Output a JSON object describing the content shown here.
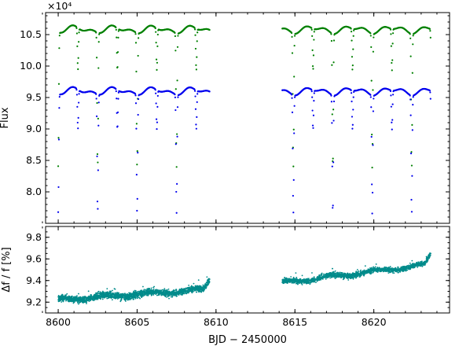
{
  "chart_data": [
    {
      "type": "scatter",
      "title": "",
      "ylabel": "Flux",
      "y_multiplier": "×10⁴",
      "xlim": [
        8599.2,
        8624.8
      ],
      "ylim": [
        7.5,
        10.85
      ],
      "x_ticks": [
        8600,
        8605,
        8610,
        8615,
        8620
      ],
      "y_ticks": [
        8.0,
        8.5,
        9.0,
        9.5,
        10.0,
        10.5
      ],
      "y_tick_labels": [
        "8.0",
        "8.5",
        "9.0",
        "9.5",
        "10.0",
        "10.5"
      ],
      "grid": false,
      "segments": [
        [
          8600.0,
          8609.6
        ],
        [
          8614.2,
          8623.6
        ]
      ],
      "series": [
        {
          "color": "#008000",
          "baseline": 10.58,
          "primary_eclipse_times": [
            8600.0,
            8602.5,
            8605.0,
            8607.5,
            8614.9,
            8617.4,
            8619.9,
            8622.4
          ],
          "primary_eclipse_depth_flux": 8.45,
          "secondary_eclipse_times": [
            8601.25,
            8603.75,
            8606.25,
            8608.75,
            8616.15,
            8618.65,
            8621.15,
            8623.65
          ],
          "secondary_eclipse_depth_flux": 9.92
        },
        {
          "color": "#0000ee",
          "baseline": 9.6,
          "primary_eclipse_times": [
            8600.0,
            8602.5,
            8605.0,
            8607.5,
            8614.9,
            8617.4,
            8619.9,
            8622.4
          ],
          "primary_eclipse_depth_flux": 7.72,
          "secondary_eclipse_times": [
            8601.25,
            8603.75,
            8606.25,
            8608.75,
            8616.15,
            8618.65,
            8621.15,
            8623.65
          ],
          "secondary_eclipse_depth_flux": 8.98
        }
      ]
    },
    {
      "type": "scatter",
      "title": "",
      "xlabel": "BJD − 2450000",
      "ylabel": "Δf / f [%]",
      "xlim": [
        8599.2,
        8624.8
      ],
      "ylim": [
        9.1,
        9.9
      ],
      "x_ticks": [
        8600,
        8605,
        8610,
        8615,
        8620
      ],
      "x_tick_labels": [
        "8600",
        "8605",
        "8610",
        "8615",
        "8620"
      ],
      "y_ticks": [
        9.2,
        9.4,
        9.6,
        9.8
      ],
      "y_tick_labels": [
        "9.2",
        "9.4",
        "9.6",
        "9.8"
      ],
      "grid": false,
      "series": [
        {
          "color": "#008b8b",
          "segments": [
            {
              "x_range": [
                8600.0,
                8609.6
              ],
              "y_start": 9.22,
              "y_end": 9.32,
              "scatter": 0.05
            },
            {
              "x_range": [
                8614.2,
                8623.6
              ],
              "y_start": 9.38,
              "y_end": 9.55,
              "scatter": 0.04
            }
          ]
        }
      ]
    }
  ]
}
